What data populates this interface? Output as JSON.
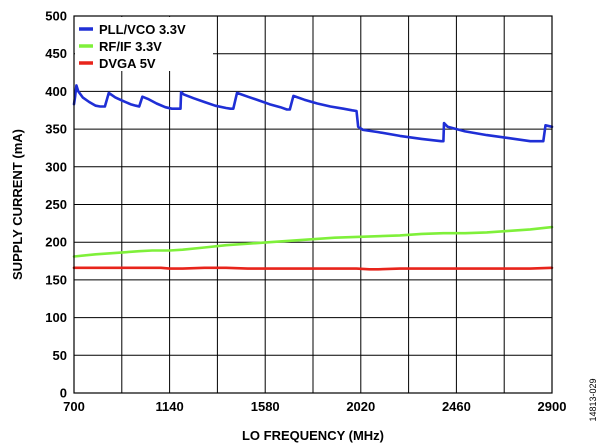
{
  "chart_data": {
    "type": "line",
    "xlabel": "LO FREQUENCY (MHz)",
    "ylabel": "SUPPLY CURRENT (mA)",
    "xlim": [
      700,
      2900
    ],
    "ylim": [
      0,
      500
    ],
    "xticks": [
      700,
      1140,
      1580,
      2020,
      2460,
      2900
    ],
    "yticks": [
      0,
      50,
      100,
      150,
      200,
      250,
      300,
      350,
      400,
      450,
      500
    ],
    "x_minor_step": 220,
    "grid": true,
    "legend_position": "top-left",
    "figure_id": "14813-029",
    "series": [
      {
        "name": "PLL/VCO 3.3V",
        "color": "#1f2fd6",
        "x": [
          700,
          705,
          711,
          720,
          740,
          770,
          800,
          820,
          842,
          860,
          890,
          920,
          960,
          985,
          1000,
          1015,
          1040,
          1080,
          1120,
          1150,
          1170,
          1190,
          1193,
          1205,
          1250,
          1300,
          1350,
          1400,
          1420,
          1433,
          1450,
          1500,
          1550,
          1600,
          1650,
          1680,
          1693,
          1710,
          1760,
          1820,
          1880,
          1940,
          1980,
          2000,
          2008,
          2030,
          2100,
          2200,
          2300,
          2390,
          2400,
          2403,
          2420,
          2500,
          2600,
          2700,
          2800,
          2860,
          2870,
          2900
        ],
        "values": [
          383,
          393,
          408,
          400,
          392,
          386,
          381,
          380,
          380,
          398,
          392,
          388,
          383,
          381,
          380,
          393,
          390,
          384,
          379,
          377,
          377,
          377,
          399,
          396,
          391,
          386,
          381,
          378,
          377,
          377,
          398,
          393,
          388,
          383,
          379,
          376,
          376,
          394,
          389,
          384,
          380,
          377,
          375,
          374,
          353,
          349,
          346,
          341,
          337,
          334,
          334,
          358,
          353,
          347,
          342,
          338,
          334,
          334,
          355,
          353
        ]
      },
      {
        "name": "RF/IF 3.3V",
        "color": "#7ff03a",
        "x": [
          700,
          800,
          900,
          1000,
          1060,
          1140,
          1200,
          1300,
          1400,
          1500,
          1600,
          1700,
          1800,
          1900,
          2000,
          2100,
          2200,
          2300,
          2400,
          2500,
          2600,
          2700,
          2800,
          2900
        ],
        "values": [
          181,
          184,
          186,
          188,
          189,
          189,
          190,
          193,
          196,
          198,
          200,
          202,
          204,
          206,
          207,
          208,
          209,
          211,
          212,
          212,
          213,
          215,
          217,
          220
        ]
      },
      {
        "name": "DVGA 5V",
        "color": "#e8241b",
        "x": [
          700,
          800,
          900,
          1000,
          1100,
          1140,
          1200,
          1300,
          1400,
          1500,
          1600,
          1700,
          1800,
          1900,
          2000,
          2060,
          2100,
          2200,
          2300,
          2400,
          2500,
          2600,
          2700,
          2800,
          2900
        ],
        "values": [
          166,
          166,
          166,
          166,
          166,
          165,
          165,
          166,
          166,
          165,
          165,
          165,
          165,
          165,
          165,
          164,
          164,
          165,
          165,
          165,
          165,
          165,
          165,
          165,
          166
        ]
      }
    ]
  }
}
